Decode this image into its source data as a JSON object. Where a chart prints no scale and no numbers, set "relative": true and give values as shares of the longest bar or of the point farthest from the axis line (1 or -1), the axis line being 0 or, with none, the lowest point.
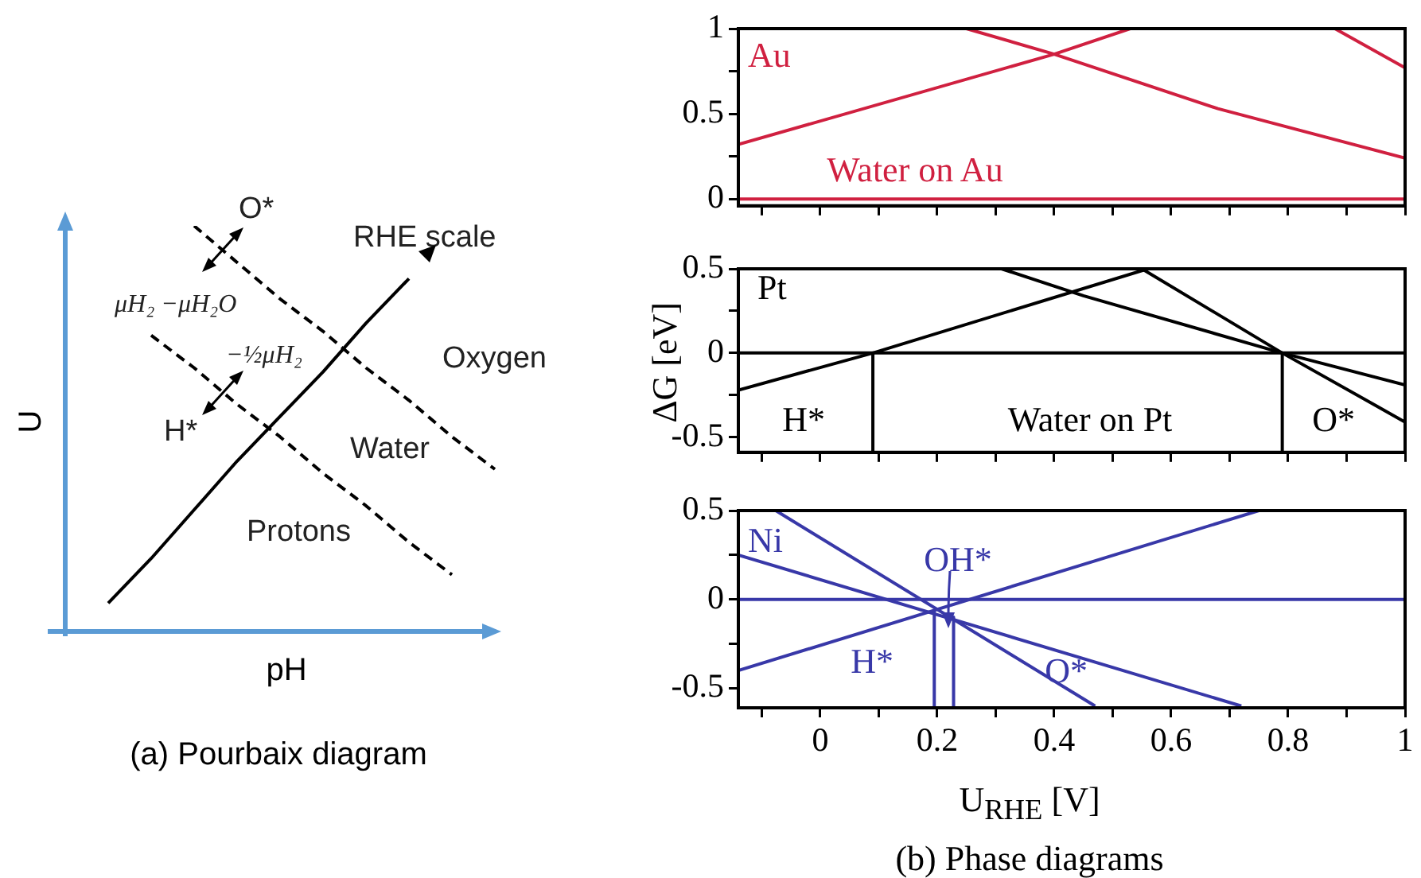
{
  "chart_data": [
    {
      "type": "line",
      "relative": true,
      "title": "(a) Pourbaix diagram",
      "xlabel": "pH",
      "ylabel": "U",
      "categories": [
        null,
        null,
        null,
        null,
        null,
        null,
        null,
        null,
        null,
        null,
        null
      ],
      "tick_labels": false,
      "grid": false,
      "marker": "none",
      "series": [
        {
          "color": "#000000",
          "line_style": "solid",
          "values": [
            null,
            0.07,
            0.18,
            0.3,
            0.42,
            0.53,
            0.64,
            0.76,
            0.87,
            null,
            null
          ]
        },
        {
          "color": "#000000",
          "line_style": "dashed",
          "values": [
            null,
            null,
            null,
            1.0,
            0.91,
            0.82,
            0.74,
            0.65,
            0.57,
            0.48,
            0.4
          ]
        },
        {
          "color": "#000000",
          "line_style": "dashed",
          "values": [
            null,
            null,
            0.73,
            0.65,
            0.56,
            0.48,
            0.39,
            0.31,
            0.22,
            0.14,
            null
          ]
        }
      ],
      "annotations": [
        "O*",
        "RHE scale",
        "μH₂ −μH₂O",
        "−½μH₂",
        "Oxygen",
        "H*",
        "Water",
        "Protons"
      ]
    },
    {
      "type": "line",
      "xlim": [
        -0.14,
        1
      ],
      "ylim": [
        -0.04,
        1
      ],
      "tick_labels": "y",
      "grid": false,
      "marker": "none",
      "xticks": [
        {
          "value": -0.1,
          "label": null
        },
        0,
        {
          "value": 0.1,
          "label": null
        },
        0.2,
        {
          "value": 0.3,
          "label": null
        },
        0.4,
        {
          "value": 0.5,
          "label": null
        },
        0.6,
        {
          "value": 0.7,
          "label": null
        },
        0.8,
        {
          "value": 0.9,
          "label": null
        },
        1
      ],
      "yticks": [
        0,
        {
          "value": 0.25,
          "label": null
        },
        0.5,
        {
          "value": 0.75,
          "label": null
        },
        1
      ],
      "series": [
        {
          "color": "#d02040",
          "x": [
            -0.14,
            0.4,
            0.53
          ],
          "values": [
            0.32,
            0.85,
            1
          ]
        },
        {
          "color": "#d02040",
          "x": [
            0.25,
            0.4,
            0.68,
            1
          ],
          "values": [
            1,
            0.85,
            0.53,
            0.24
          ]
        },
        {
          "color": "#d02040",
          "x": [
            0.88,
            1
          ],
          "values": [
            1,
            0.77
          ]
        },
        {
          "color": "#d02040",
          "x": [
            -0.14,
            1
          ],
          "values": [
            0,
            0
          ]
        }
      ],
      "annotations": [
        "Au",
        "Water on Au"
      ]
    },
    {
      "type": "line",
      "xlim": [
        -0.14,
        1
      ],
      "ylim": [
        -0.59,
        0.5
      ],
      "tick_labels": "y",
      "grid": false,
      "marker": "none",
      "ylabel": "ΔG [eV]",
      "xticks": [
        {
          "value": -0.1,
          "label": null
        },
        0,
        {
          "value": 0.1,
          "label": null
        },
        0.2,
        {
          "value": 0.3,
          "label": null
        },
        0.4,
        {
          "value": 0.5,
          "label": null
        },
        0.6,
        {
          "value": 0.7,
          "label": null
        },
        0.8,
        {
          "value": 0.9,
          "label": null
        },
        1
      ],
      "yticks": [
        -0.5,
        {
          "value": -0.25,
          "label": null
        },
        0,
        {
          "value": 0.25,
          "label": null
        },
        0.5
      ],
      "series": [
        {
          "color": "#000000",
          "x": [
            -0.14,
            0.09,
            0.56
          ],
          "values": [
            -0.22,
            0,
            0.5
          ]
        },
        {
          "color": "#000000",
          "x": [
            0.55,
            0.79,
            1
          ],
          "values": [
            0.5,
            0,
            -0.41
          ]
        },
        {
          "color": "#000000",
          "x": [
            0.31,
            0.45,
            0.79,
            1
          ],
          "values": [
            0.5,
            0.34,
            0,
            -0.19
          ]
        },
        {
          "color": "#000000",
          "x": [
            -0.14,
            1
          ],
          "values": [
            0,
            0
          ]
        },
        {
          "color": "#000000",
          "x": [
            0.09,
            0.09
          ],
          "values": [
            0,
            -0.59
          ]
        },
        {
          "color": "#000000",
          "x": [
            0.79,
            0.79
          ],
          "values": [
            0,
            -0.59
          ]
        }
      ],
      "annotations": [
        "Pt",
        "H*",
        "Water on Pt",
        "O*"
      ]
    },
    {
      "type": "line",
      "xlim": [
        -0.14,
        1
      ],
      "ylim": [
        -0.61,
        0.5
      ],
      "grid": false,
      "marker": "none",
      "xlabel": "U$_{RHE}$ [V]",
      "title": "(b) Phase diagrams",
      "xticks": [
        {
          "value": -0.1,
          "label": null
        },
        0,
        {
          "value": 0.1,
          "label": null
        },
        0.2,
        {
          "value": 0.3,
          "label": null
        },
        0.4,
        {
          "value": 0.5,
          "label": null
        },
        0.6,
        {
          "value": 0.7,
          "label": null
        },
        0.8,
        {
          "value": 0.9,
          "label": null
        },
        1
      ],
      "yticks": [
        -0.5,
        {
          "value": -0.25,
          "label": null
        },
        0,
        {
          "value": 0.25,
          "label": null
        },
        0.5
      ],
      "series": [
        {
          "color": "#3838a8",
          "x": [
            -0.14,
            0.75
          ],
          "values": [
            -0.4,
            0.5
          ]
        },
        {
          "color": "#3838a8",
          "x": [
            -0.076,
            0.47
          ],
          "values": [
            0.5,
            -0.6
          ]
        },
        {
          "color": "#3838a8",
          "x": [
            -0.14,
            0.72
          ],
          "values": [
            0.25,
            -0.6
          ]
        },
        {
          "color": "#3838a8",
          "x": [
            -0.14,
            1
          ],
          "values": [
            0,
            0
          ]
        },
        {
          "color": "#3838a8",
          "x": [
            0.195,
            0.195
          ],
          "values": [
            -0.07,
            -0.61
          ]
        },
        {
          "color": "#3838a8",
          "x": [
            0.228,
            0.228
          ],
          "values": [
            -0.1,
            -0.61
          ]
        }
      ],
      "annotations": [
        "Ni",
        "OH*",
        "H*",
        "O*"
      ]
    }
  ]
}
